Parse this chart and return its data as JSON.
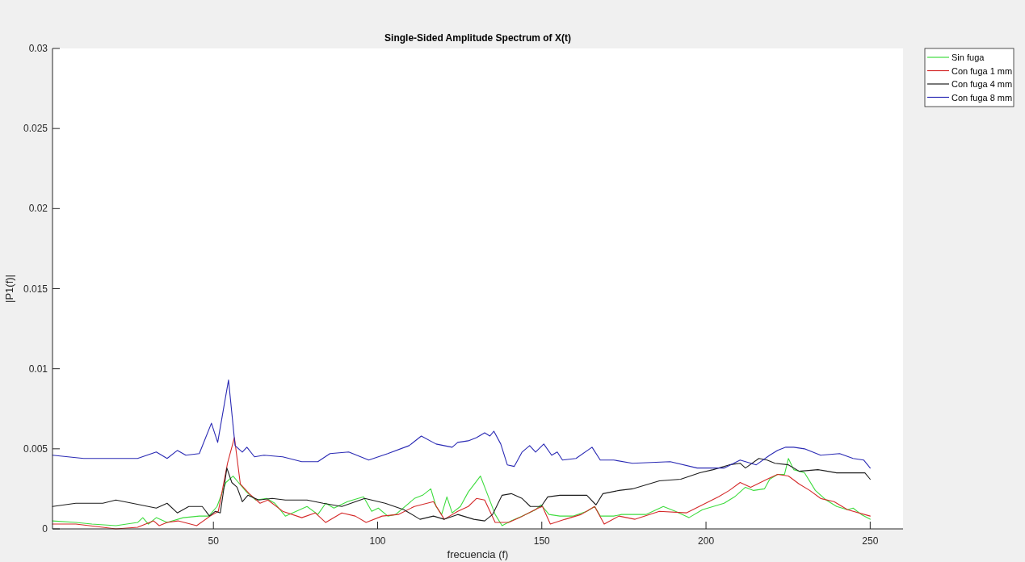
{
  "chart_data": {
    "type": "line",
    "title": "Single-Sided Amplitude Spectrum of X(t)",
    "xlabel": "frecuencia (f)",
    "ylabel": "|P1(f)|",
    "xlim": [
      1,
      260
    ],
    "xticks": [
      50,
      100,
      150,
      200,
      250
    ],
    "ylim": [
      0,
      0.03
    ],
    "yticks": [
      0,
      0.005,
      0.01,
      0.015,
      0.02,
      0.025,
      0.03
    ],
    "legend": "top right",
    "series": [
      {
        "name": "Sin fuga",
        "color": "#3fdc3f",
        "x": [
          1,
          8.1,
          13,
          20.3,
          26.9,
          28.5,
          30.2,
          32.6,
          35.9,
          40.8,
          45.7,
          48.6,
          51.1,
          53.8,
          56,
          57.2,
          60.1,
          62.9,
          66.2,
          68.7,
          71.9,
          75.2,
          78.5,
          81.8,
          84.2,
          86.7,
          90.8,
          95.7,
          98.2,
          100.2,
          103.1,
          105.5,
          111.2,
          113.7,
          116.2,
          117.8,
          119.5,
          121.1,
          122.7,
          125.2,
          127.6,
          131.3,
          133,
          135.8,
          137.9,
          140.7,
          144,
          148.1,
          149.8,
          152.2,
          155.5,
          159.6,
          163.7,
          166.1,
          167.8,
          171.9,
          174.3,
          181.7,
          187,
          190.7,
          194.8,
          198.9,
          205.5,
          208.7,
          212,
          214.5,
          217.8,
          219.4,
          221.8,
          223.9,
          225.1,
          226.7,
          230,
          233.3,
          236.6,
          239.8,
          243.1,
          244.8,
          247.3,
          250
        ],
        "values": [
          0.0005,
          0.0004,
          0.0003,
          0.0002,
          0.0004,
          0.0007,
          0.0003,
          0.0007,
          0.0004,
          0.0007,
          0.0008,
          0.0008,
          0.0014,
          0.0029,
          0.0033,
          0.003,
          0.0023,
          0.0018,
          0.0019,
          0.0016,
          0.0008,
          0.0011,
          0.0014,
          0.0009,
          0.0016,
          0.0013,
          0.0017,
          0.002,
          0.0011,
          0.0013,
          0.0008,
          0.0009,
          0.0019,
          0.0021,
          0.0025,
          0.0014,
          0.0009,
          0.002,
          0.001,
          0.0014,
          0.0023,
          0.0033,
          0.0024,
          0.0009,
          0.0002,
          0.0005,
          0.0008,
          0.0012,
          0.0015,
          0.0009,
          0.0008,
          0.0008,
          0.0011,
          0.0014,
          0.0008,
          0.0008,
          0.0009,
          0.0009,
          0.0014,
          0.0011,
          0.0007,
          0.0012,
          0.0016,
          0.002,
          0.0026,
          0.0024,
          0.0025,
          0.0031,
          0.0034,
          0.0034,
          0.0044,
          0.0037,
          0.0035,
          0.0024,
          0.0018,
          0.0014,
          0.0012,
          0.0013,
          0.0009,
          0.0006
        ]
      },
      {
        "name": "Con fuga 1 mm",
        "color": "#d42a2a",
        "x": [
          1,
          8.1,
          16.3,
          20.3,
          26.9,
          31.8,
          33.5,
          35.9,
          39.2,
          44.9,
          49,
          51.5,
          54.3,
          56.4,
          58.2,
          60.9,
          64.2,
          66.6,
          71.1,
          76.9,
          81,
          84.2,
          89.1,
          93.2,
          96.5,
          101.4,
          106.3,
          111.2,
          117,
          120.3,
          124.4,
          127.6,
          130.1,
          132.6,
          135.8,
          139.9,
          143.2,
          148.9,
          150.2,
          152.6,
          157.1,
          162,
          166.1,
          169,
          173.5,
          178.4,
          185.8,
          194,
          198.9,
          203.8,
          207.1,
          210.4,
          213.6,
          218.6,
          221.8,
          225.1,
          228.4,
          231.6,
          234.9,
          239,
          243.1,
          250
        ],
        "values": [
          0.0003,
          0.0003,
          0.0001,
          0,
          0.0001,
          0.0005,
          0.0002,
          0.0004,
          0.0005,
          0.0002,
          0.0008,
          0.0011,
          0.0041,
          0.0057,
          0.0028,
          0.0022,
          0.0016,
          0.0018,
          0.0011,
          0.0007,
          0.001,
          0.0004,
          0.001,
          0.0008,
          0.0004,
          0.0008,
          0.0009,
          0.0014,
          0.0017,
          0.0006,
          0.0011,
          0.0014,
          0.0019,
          0.0018,
          0.0004,
          0.0004,
          0.0007,
          0.0013,
          0.0014,
          0.0003,
          0.0006,
          0.0009,
          0.0014,
          0.0003,
          0.0008,
          0.0006,
          0.0011,
          0.001,
          0.0015,
          0.002,
          0.0024,
          0.0029,
          0.0026,
          0.0031,
          0.0034,
          0.0033,
          0.0028,
          0.0024,
          0.0019,
          0.0017,
          0.0012,
          0.0008
        ]
      },
      {
        "name": "Con fuga 4 mm",
        "color": "#1e1e1e",
        "x": [
          1,
          8.1,
          16.3,
          20.3,
          25.3,
          32.6,
          35.9,
          39,
          42.5,
          46.6,
          48.8,
          50.6,
          52.1,
          54.1,
          55.6,
          57.2,
          58.8,
          60.5,
          63.8,
          67.9,
          71.9,
          78.5,
          83.4,
          89.1,
          96.1,
          102.3,
          108,
          112.9,
          117,
          120.3,
          124.4,
          129.3,
          132.6,
          135,
          137.9,
          140.7,
          144,
          146.5,
          149.8,
          151.8,
          155.5,
          163.7,
          166.5,
          168.6,
          173.5,
          177.6,
          185.8,
          192.3,
          198.1,
          202.2,
          207.1,
          210.4,
          212,
          216.1,
          218.6,
          221,
          225.1,
          228.4,
          234.1,
          239.8,
          245.6,
          248.4,
          250
        ],
        "values": [
          0.0014,
          0.0016,
          0.0016,
          0.0018,
          0.0016,
          0.0013,
          0.0016,
          0.001,
          0.0014,
          0.0014,
          0.0008,
          0.0011,
          0.001,
          0.0038,
          0.0029,
          0.0026,
          0.0017,
          0.0021,
          0.0018,
          0.0019,
          0.0018,
          0.0018,
          0.0016,
          0.0014,
          0.0019,
          0.0016,
          0.0012,
          0.0006,
          0.0008,
          0.0006,
          0.0009,
          0.0006,
          0.0005,
          0.0009,
          0.0021,
          0.0022,
          0.0019,
          0.0014,
          0.0014,
          0.002,
          0.0021,
          0.0021,
          0.0015,
          0.0022,
          0.0024,
          0.0025,
          0.003,
          0.0031,
          0.0035,
          0.0037,
          0.004,
          0.0041,
          0.0038,
          0.0044,
          0.0043,
          0.0041,
          0.004,
          0.0036,
          0.0037,
          0.0035,
          0.0035,
          0.0035,
          0.0031
        ]
      },
      {
        "name": "Con fuga 8 mm",
        "color": "#2a2ab4",
        "x": [
          1,
          10.5,
          26.9,
          32.6,
          35.9,
          39,
          41.6,
          45.7,
          49.4,
          51.3,
          54.6,
          56.6,
          58.8,
          60.2,
          62.5,
          65.4,
          71.1,
          76.9,
          81.8,
          85.5,
          91.2,
          97.3,
          103.1,
          109.6,
          113.3,
          117.8,
          122.7,
          124.4,
          127.6,
          130.1,
          132.6,
          134.2,
          135.4,
          137.5,
          139.5,
          141.6,
          144,
          146.3,
          148.1,
          150.6,
          153,
          154.7,
          156.3,
          160.4,
          165.3,
          167.8,
          171.9,
          177.6,
          189.1,
          197.3,
          205.5,
          210.4,
          215.3,
          219.4,
          221.8,
          224.3,
          226.7,
          230,
          234.9,
          240.7,
          244.8,
          248,
          250
        ],
        "values": [
          0.0046,
          0.0044,
          0.0044,
          0.0048,
          0.0044,
          0.0049,
          0.0046,
          0.0047,
          0.0066,
          0.0054,
          0.0093,
          0.0052,
          0.0048,
          0.0051,
          0.0045,
          0.0046,
          0.0045,
          0.0042,
          0.0042,
          0.0047,
          0.0048,
          0.0043,
          0.0047,
          0.0052,
          0.0058,
          0.0053,
          0.0051,
          0.0054,
          0.0055,
          0.0057,
          0.006,
          0.0058,
          0.0061,
          0.0053,
          0.004,
          0.0039,
          0.0048,
          0.0052,
          0.0048,
          0.0053,
          0.0046,
          0.0048,
          0.0043,
          0.0044,
          0.0051,
          0.0043,
          0.0043,
          0.0041,
          0.0042,
          0.0038,
          0.0038,
          0.0043,
          0.004,
          0.0046,
          0.0049,
          0.0051,
          0.0051,
          0.005,
          0.0046,
          0.0047,
          0.0044,
          0.0043,
          0.0038
        ]
      }
    ]
  }
}
